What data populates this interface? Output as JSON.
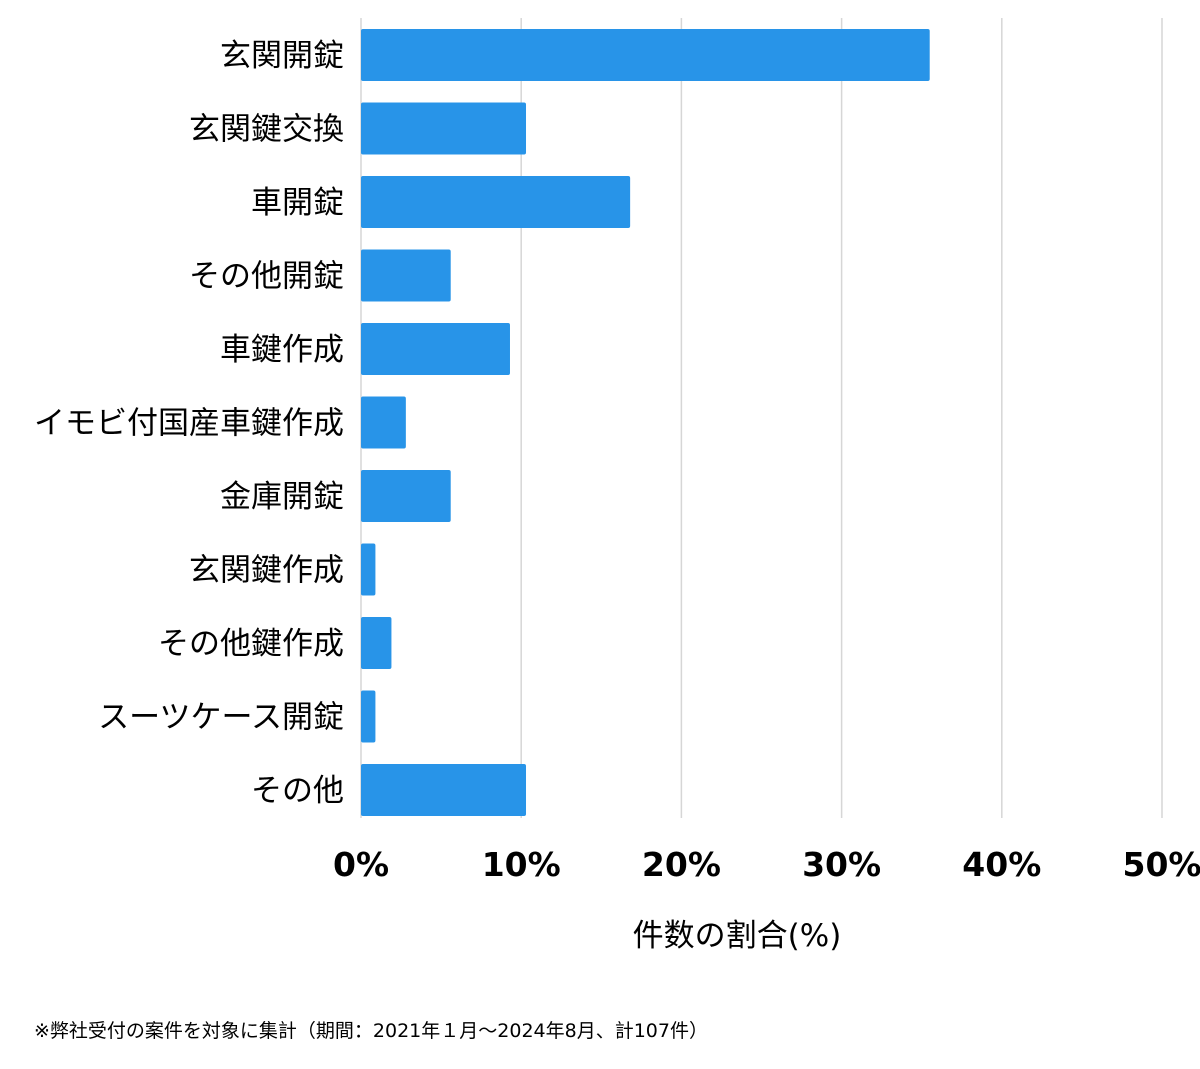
{
  "chart_data": {
    "type": "bar",
    "orientation": "horizontal",
    "categories": [
      "玄関開錠",
      "玄関鍵交換",
      "車開錠",
      "その他開錠",
      "車鍵作成",
      "イモビ付国産車鍵作成",
      "金庫開錠",
      "玄関鍵作成",
      "その他鍵作成",
      "スーツケース開錠",
      "その他"
    ],
    "values": [
      35.5,
      10.3,
      16.8,
      5.6,
      9.3,
      2.8,
      5.6,
      0.9,
      1.9,
      0.9,
      10.3
    ],
    "xlabel": "件数の割合(%)",
    "ylabel": "",
    "xlim": [
      0,
      50
    ],
    "xticks": [
      0,
      10,
      20,
      30,
      40,
      50
    ],
    "xtick_labels": [
      "0%",
      "10%",
      "20%",
      "30%",
      "40%",
      "50%"
    ],
    "grid": "vertical",
    "bar_color": "#2894e8"
  },
  "footnote": "※弊社受付の案件を対象に集計（期間：2021年１月〜2024年8月、計107件）"
}
